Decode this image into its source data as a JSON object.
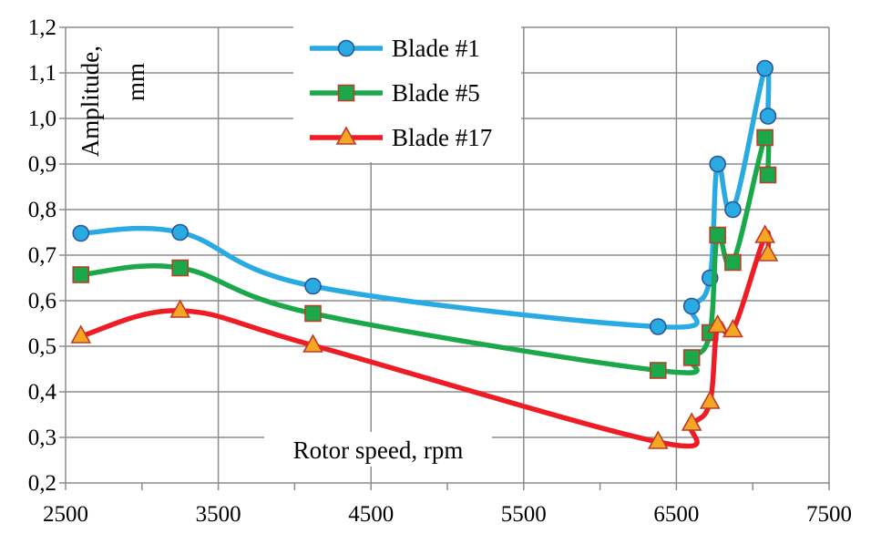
{
  "chart_data": {
    "type": "line",
    "title": "",
    "xlabel": "Rotor speed, rpm",
    "ylabel": "Amplitude, mm",
    "xlim": [
      2500,
      7500
    ],
    "ylim": [
      0.2,
      1.2
    ],
    "x_ticks": [
      "2500",
      "3500",
      "4500",
      "5500",
      "6500",
      "7500"
    ],
    "x_tick_values": [
      2500,
      3500,
      4500,
      5500,
      6500,
      7500
    ],
    "y_ticks": [
      "0,2",
      "0,3",
      "0,4",
      "0,5",
      "0,6",
      "0,7",
      "0,8",
      "0,9",
      "1,0",
      "1,1",
      "1,2"
    ],
    "y_tick_values": [
      0.2,
      0.3,
      0.4,
      0.5,
      0.6,
      0.7,
      0.8,
      0.9,
      1.0,
      1.1,
      1.2
    ],
    "grid": true,
    "legend_position": "top-center",
    "series": [
      {
        "name": "Blade #1",
        "color": "#2aaae2",
        "marker": "circle",
        "x": [
          2600,
          3250,
          4120,
          6380,
          6600,
          6720,
          6770,
          6870,
          7080,
          7100
        ],
        "y": [
          0.748,
          0.75,
          0.632,
          0.543,
          0.588,
          0.65,
          0.9,
          0.8,
          1.11,
          1.005
        ]
      },
      {
        "name": "Blade #5",
        "color": "#1aa84a",
        "marker": "square",
        "x": [
          2600,
          3250,
          4120,
          6380,
          6600,
          6720,
          6770,
          6870,
          7080,
          7100
        ],
        "y": [
          0.657,
          0.672,
          0.572,
          0.447,
          0.475,
          0.53,
          0.744,
          0.684,
          0.958,
          0.876
        ]
      },
      {
        "name": "Blade #17",
        "color": "#ee1c24",
        "marker": "triangle",
        "x": [
          2600,
          3250,
          4120,
          6380,
          6600,
          6720,
          6770,
          6870,
          7080,
          7100
        ],
        "y": [
          0.522,
          0.578,
          0.502,
          0.29,
          0.33,
          0.378,
          0.545,
          0.535,
          0.742,
          0.702
        ]
      }
    ]
  }
}
